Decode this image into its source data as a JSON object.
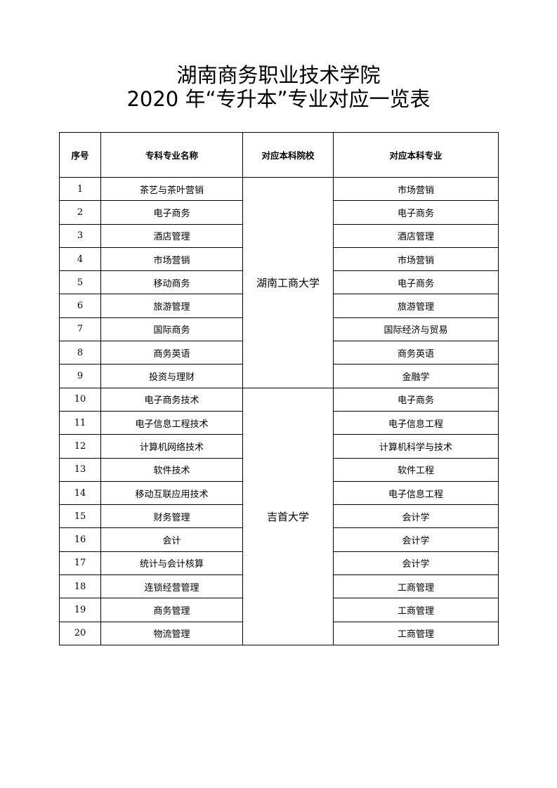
{
  "title_line1": "湖南商务职业技术学院",
  "title_line2": "2020 年“专升本”专业对应一览表",
  "headers": [
    "序号",
    "专科专业名称",
    "对应本科院校",
    "对应本科专业"
  ],
  "groups": [
    {
      "school": "湖南工商大学",
      "rows": [
        [
          "1",
          "茶艺与茶叶营销",
          "市场营销"
        ],
        [
          "2",
          "电子商务",
          "电子商务"
        ],
        [
          "3",
          "酒店管理",
          "酒店管理"
        ],
        [
          "4",
          "市场营销",
          "市场营销"
        ],
        [
          "5",
          "移动商务",
          "电子商务"
        ],
        [
          "6",
          "旅游管理",
          "旅游管理"
        ],
        [
          "7",
          "国际商务",
          "国际经济与贸易"
        ],
        [
          "8",
          "商务英语",
          "商务英语"
        ],
        [
          "9",
          "投资与理财",
          "金融学"
        ]
      ]
    },
    {
      "school": "吉首大学",
      "rows": [
        [
          "10",
          "电子商务技术",
          "电子商务"
        ],
        [
          "11",
          "电子信息工程技术",
          "电子信息工程"
        ],
        [
          "12",
          "计算机网络技术",
          "计算机科学与技术"
        ],
        [
          "13",
          "软件技术",
          "软件工程"
        ],
        [
          "14",
          "移动互联应用技术",
          "电子信息工程"
        ],
        [
          "15",
          "财务管理",
          "会计学"
        ],
        [
          "16",
          "会计",
          "会计学"
        ],
        [
          "17",
          "统计与会计核算",
          "会计学"
        ],
        [
          "18",
          "连锁经营管理",
          "工商管理"
        ],
        [
          "19",
          "商务管理",
          "工商管理"
        ],
        [
          "20",
          "物流管理",
          "工商管理"
        ]
      ]
    }
  ]
}
